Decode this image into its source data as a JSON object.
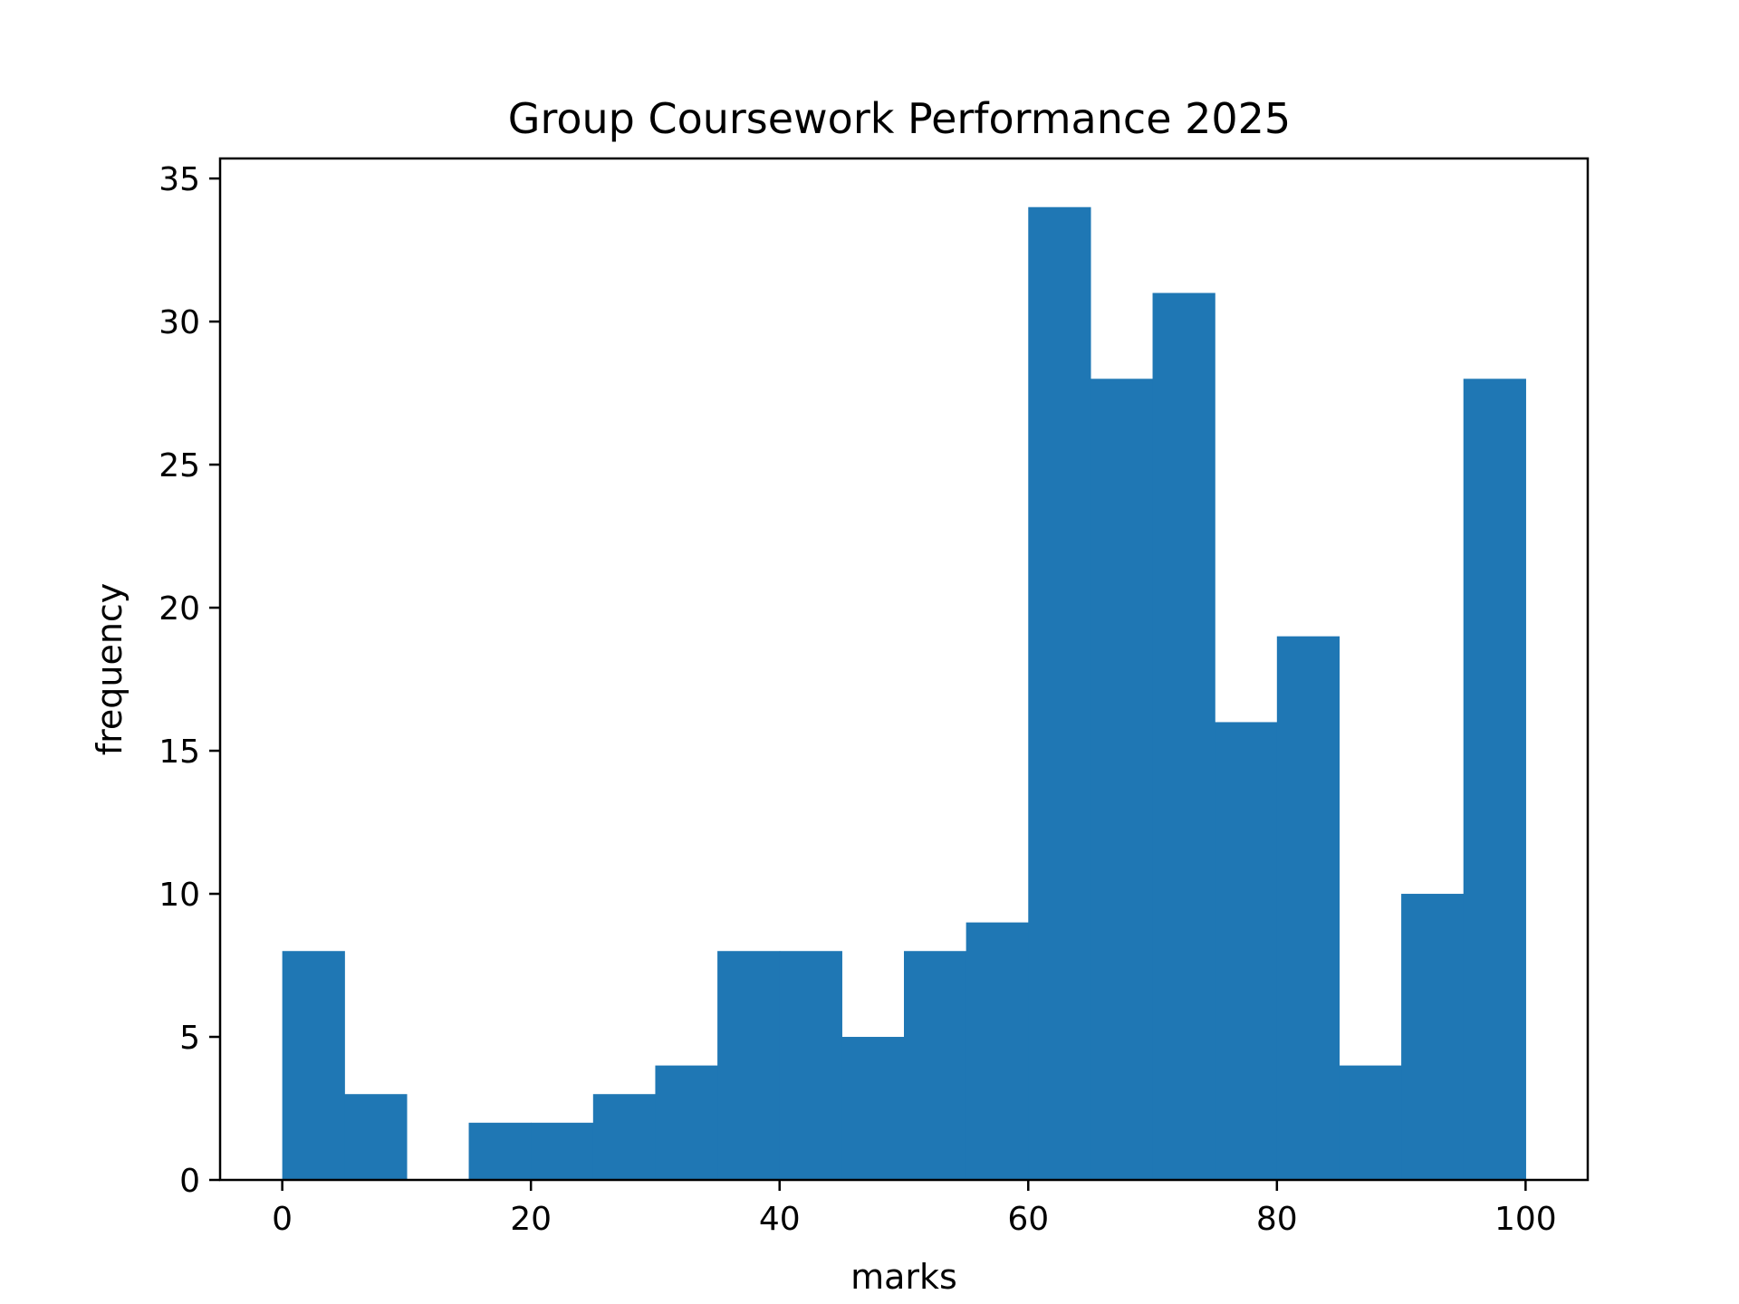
{
  "chart_data": {
    "type": "bar",
    "subtype": "histogram",
    "title": "Group Coursework Performance 2025",
    "xlabel": "marks",
    "ylabel": "frequency",
    "bin_edges": [
      0,
      5,
      10,
      15,
      20,
      25,
      30,
      35,
      40,
      45,
      50,
      55,
      60,
      65,
      70,
      75,
      80,
      85,
      90,
      95,
      100
    ],
    "values": [
      8,
      3,
      0,
      2,
      2,
      3,
      4,
      8,
      8,
      5,
      8,
      9,
      34,
      28,
      31,
      16,
      19,
      4,
      10,
      28
    ],
    "xlim": [
      -5,
      105
    ],
    "ylim": [
      0,
      35.7
    ],
    "xticks": [
      0,
      20,
      40,
      60,
      80,
      100
    ],
    "yticks": [
      0,
      5,
      10,
      15,
      20,
      25,
      30,
      35
    ],
    "grid": false,
    "legend": "none",
    "bar_color": "#1f77b4"
  }
}
